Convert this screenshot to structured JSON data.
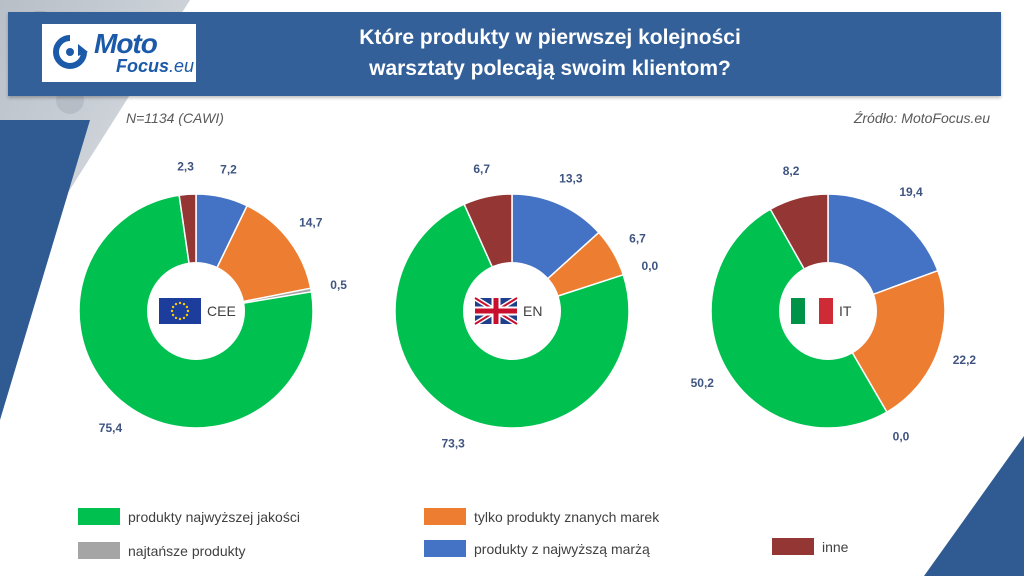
{
  "header": {
    "logo": {
      "line1": "Moto",
      "line2_main": "Focus",
      "line2_suffix": ".eu"
    },
    "title_line1": "Które produkty w pierwszej kolejności",
    "title_line2": "warsztaty polecają swoim klientom?"
  },
  "meta": {
    "sample": "N=1134 (CAWI)",
    "source": "Źródło: MotoFocus.eu"
  },
  "chart_data": [
    {
      "type": "pie",
      "title": "CEE",
      "categories": [
        "produkty z najwyższą marżą",
        "tylko produkty znanych marek",
        "najtańsze produkty",
        "produkty najwyższej jakości",
        "inne"
      ],
      "values": [
        7.2,
        14.7,
        0.5,
        75.4,
        2.3
      ],
      "labels": [
        "7,2",
        "14,7",
        "0,5",
        "75,4",
        "2,3"
      ],
      "flag": "eu-flag"
    },
    {
      "type": "pie",
      "title": "EN",
      "categories": [
        "produkty z najwyższą marżą",
        "tylko produkty znanych marek",
        "najtańsze produkty",
        "produkty najwyższej jakości",
        "inne"
      ],
      "values": [
        13.3,
        6.7,
        0.0,
        73.3,
        6.7
      ],
      "labels": [
        "13,3",
        "6,7",
        "0,0",
        "73,3",
        "6,7"
      ],
      "flag": "uk-flag"
    },
    {
      "type": "pie",
      "title": "IT",
      "categories": [
        "produkty z najwyższą marżą",
        "tylko produkty znanych marek",
        "najtańsze produkty",
        "produkty najwyższej jakości",
        "inne"
      ],
      "values": [
        19.4,
        22.2,
        0.0,
        50.2,
        8.2
      ],
      "labels": [
        "19,4",
        "22,2",
        "0,0",
        "50,2",
        "8,2"
      ],
      "flag": "italy-flag"
    }
  ],
  "series_colors": {
    "produkty z najwyższą marżą": "#4472c4",
    "tylko produkty znanych marek": "#ed7d31",
    "najtańsze produkty": "#a5a5a5",
    "produkty najwyższej jakości": "#00c050",
    "inne": "#943634"
  },
  "legend": [
    {
      "label": "produkty najwyższej jakości",
      "color": "#00c050"
    },
    {
      "label": "tylko produkty znanych marek",
      "color": "#ed7d31"
    },
    {
      "label": "najtańsze produkty",
      "color": "#a5a5a5"
    },
    {
      "label": "produkty z najwyższą marżą",
      "color": "#4472c4"
    },
    {
      "label": "inne",
      "color": "#943634"
    }
  ]
}
